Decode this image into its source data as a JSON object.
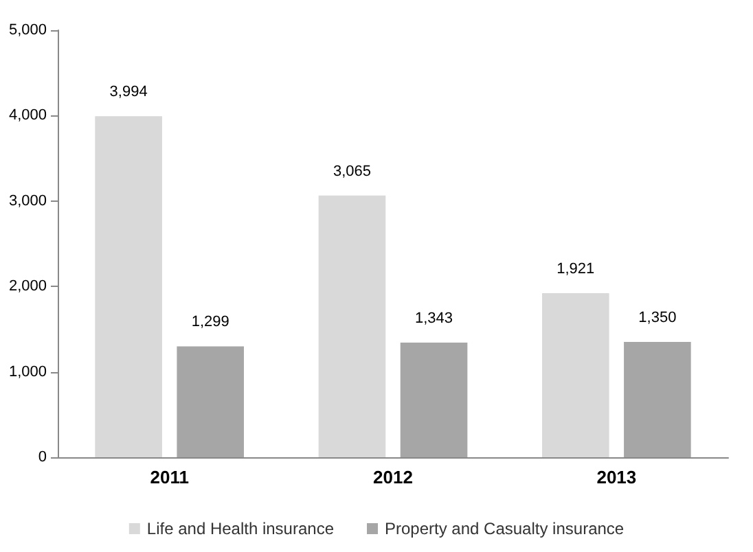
{
  "chart_data": {
    "type": "bar",
    "categories": [
      "2011",
      "2012",
      "2013"
    ],
    "series": [
      {
        "name": "Life and Health insurance",
        "color": "#d9d9d9",
        "values": [
          3994,
          3065,
          1921
        ],
        "value_labels": [
          "3,994",
          "3,065",
          "1,921"
        ]
      },
      {
        "name": "Property and Casualty insurance",
        "color": "#a6a6a6",
        "values": [
          1299,
          1343,
          1350
        ],
        "value_labels": [
          "1,299",
          "1,343",
          "1,350"
        ]
      }
    ],
    "ylim": [
      0,
      5000
    ],
    "yticks": [
      0,
      {
        "value": 1000,
        "label": "1,000"
      },
      {
        "value": 2000,
        "label": "2,000"
      },
      {
        "value": 3000,
        "label": "3,000"
      },
      {
        "value": 4000,
        "label": "4,000"
      },
      {
        "value": 5000,
        "label": "5,000"
      }
    ],
    "grid": false,
    "legend": "bottom"
  }
}
